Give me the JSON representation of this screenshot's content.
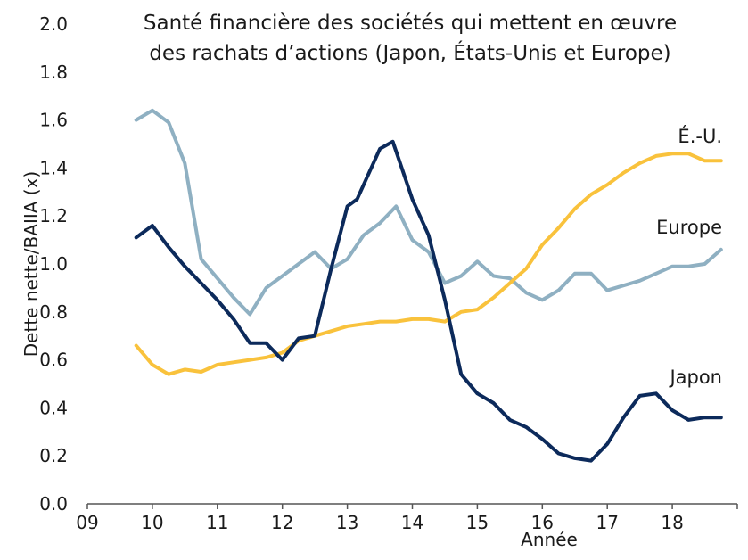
{
  "chart_data": {
    "type": "line",
    "title": [
      "Santé financière des sociétés qui mettent en œuvre",
      "des rachats d’actions (Japon, États-Unis et Europe)"
    ],
    "xlabel": "Année",
    "ylabel": "Dette nette/BAIIA (x)",
    "xlim": [
      9,
      19
    ],
    "ylim": [
      0,
      2.0
    ],
    "x_ticks": [
      "09",
      "10",
      "11",
      "12",
      "13",
      "14",
      "15",
      "16",
      "17",
      "18"
    ],
    "y_ticks": [
      "0.0",
      "0.2",
      "0.4",
      "0.6",
      "0.8",
      "1.0",
      "1.2",
      "1.4",
      "1.6",
      "1.8",
      "2.0"
    ],
    "grid": false,
    "series": [
      {
        "name": "Japon",
        "color": "#0c2a5b",
        "x": [
          9.75,
          10.0,
          10.25,
          10.5,
          10.75,
          11.0,
          11.25,
          11.5,
          11.75,
          12.0,
          12.25,
          12.5,
          12.75,
          13.0,
          13.15,
          13.5,
          13.7,
          14.0,
          14.25,
          14.5,
          14.75,
          15.0,
          15.25,
          15.5,
          15.75,
          16.0,
          16.25,
          16.5,
          16.75,
          17.0,
          17.25,
          17.5,
          17.75,
          18.0,
          18.25,
          18.5,
          18.75
        ],
        "values": [
          1.11,
          1.16,
          1.07,
          0.99,
          0.92,
          0.85,
          0.77,
          0.67,
          0.67,
          0.6,
          0.69,
          0.7,
          0.98,
          1.24,
          1.27,
          1.48,
          1.51,
          1.27,
          1.12,
          0.85,
          0.54,
          0.46,
          0.42,
          0.35,
          0.32,
          0.27,
          0.21,
          0.19,
          0.18,
          0.25,
          0.36,
          0.45,
          0.46,
          0.39,
          0.35,
          0.36,
          0.36
        ]
      },
      {
        "name": "É.-U.",
        "color": "#f9c23c",
        "x": [
          9.75,
          10.0,
          10.25,
          10.5,
          10.75,
          11.0,
          11.25,
          11.5,
          11.75,
          12.0,
          12.25,
          12.5,
          12.75,
          13.0,
          13.25,
          13.5,
          13.75,
          14.0,
          14.25,
          14.5,
          14.75,
          15.0,
          15.25,
          15.5,
          15.75,
          16.0,
          16.25,
          16.5,
          16.75,
          17.0,
          17.25,
          17.5,
          17.75,
          18.0,
          18.25,
          18.5,
          18.75
        ],
        "values": [
          0.66,
          0.58,
          0.54,
          0.56,
          0.55,
          0.58,
          0.59,
          0.6,
          0.61,
          0.63,
          0.68,
          0.7,
          0.72,
          0.74,
          0.75,
          0.76,
          0.76,
          0.77,
          0.77,
          0.76,
          0.8,
          0.81,
          0.86,
          0.92,
          0.98,
          1.08,
          1.15,
          1.23,
          1.29,
          1.33,
          1.38,
          1.42,
          1.45,
          1.46,
          1.46,
          1.43,
          1.43
        ]
      },
      {
        "name": "Europe",
        "color": "#8fb0c2",
        "x": [
          9.75,
          10.0,
          10.25,
          10.5,
          10.75,
          11.0,
          11.25,
          11.5,
          11.75,
          12.0,
          12.25,
          12.5,
          12.75,
          13.0,
          13.25,
          13.5,
          13.75,
          14.0,
          14.25,
          14.5,
          14.75,
          15.0,
          15.25,
          15.5,
          15.75,
          16.0,
          16.25,
          16.5,
          16.75,
          17.0,
          17.25,
          17.5,
          17.75,
          18.0,
          18.25,
          18.5,
          18.75
        ],
        "values": [
          1.6,
          1.64,
          1.59,
          1.42,
          1.02,
          0.94,
          0.86,
          0.79,
          0.9,
          0.95,
          1.0,
          1.05,
          0.98,
          1.02,
          1.12,
          1.17,
          1.24,
          1.1,
          1.05,
          0.92,
          0.95,
          1.01,
          0.95,
          0.94,
          0.88,
          0.85,
          0.89,
          0.96,
          0.96,
          0.89,
          0.91,
          0.93,
          0.96,
          0.99,
          0.99,
          1.0,
          1.06
        ]
      }
    ]
  }
}
